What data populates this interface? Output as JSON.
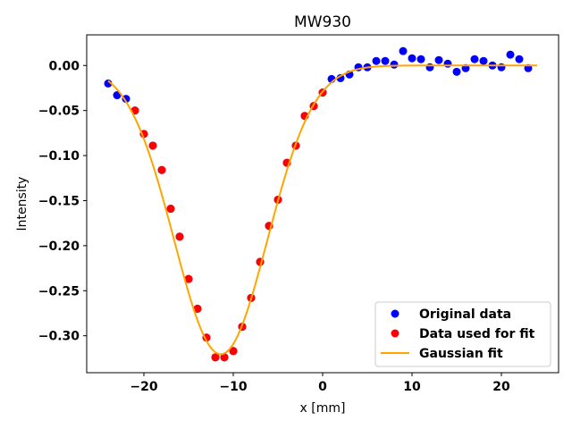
{
  "chart_data": {
    "type": "scatter",
    "title": "MW930",
    "xlabel": "x [mm]",
    "ylabel": "Intensity",
    "xlim": [
      -26.4,
      26.4
    ],
    "ylim": [
      -0.341,
      0.034
    ],
    "x_ticks": [
      -20,
      -10,
      0,
      10,
      20
    ],
    "x_tick_labels": [
      "−20",
      "−10",
      "0",
      "10",
      "20"
    ],
    "y_ticks": [
      0.0,
      -0.05,
      -0.1,
      -0.15,
      -0.2,
      -0.25,
      -0.3
    ],
    "y_tick_labels": [
      "0.00",
      "−0.05",
      "−0.10",
      "−0.15",
      "−0.20",
      "−0.25",
      "−0.30"
    ],
    "grid": false,
    "legend_position": "lower-right",
    "colors": {
      "original": "#0000ff",
      "fit_data": "#ff0000",
      "fit_line": "#ffa500"
    },
    "series": [
      {
        "name": "Original data",
        "kind": "scatter",
        "x": [
          -24,
          -23,
          -22,
          -21,
          -20,
          -19,
          -18,
          -17,
          -16,
          -15,
          -14,
          -13,
          -12,
          -11,
          -10,
          -9,
          -8,
          -7,
          -6,
          -5,
          -4,
          -3,
          -2,
          -1,
          0,
          1,
          2,
          3,
          4,
          5,
          6,
          7,
          8,
          9,
          10,
          11,
          12,
          13,
          14,
          15,
          16,
          17,
          18,
          19,
          20,
          21,
          22,
          23
        ],
        "y": [
          -0.02,
          -0.033,
          -0.037,
          -0.05,
          -0.076,
          -0.089,
          -0.116,
          -0.159,
          -0.19,
          -0.237,
          -0.27,
          -0.302,
          -0.324,
          -0.324,
          -0.317,
          -0.29,
          -0.258,
          -0.218,
          -0.178,
          -0.149,
          -0.108,
          -0.089,
          -0.056,
          -0.045,
          -0.03,
          -0.015,
          -0.014,
          -0.01,
          -0.002,
          -0.002,
          0.005,
          0.005,
          0.001,
          0.016,
          0.008,
          0.007,
          -0.002,
          0.006,
          0.002,
          -0.007,
          -0.003,
          0.007,
          0.005,
          0.0,
          -0.002,
          0.012,
          0.007,
          -0.003
        ]
      },
      {
        "name": "Data used for fit",
        "kind": "scatter",
        "x": [
          -21,
          -20,
          -19,
          -18,
          -17,
          -16,
          -15,
          -14,
          -13,
          -12,
          -11,
          -10,
          -9,
          -8,
          -7,
          -6,
          -5,
          -4,
          -3,
          -2,
          -1,
          0
        ],
        "y": [
          -0.05,
          -0.076,
          -0.089,
          -0.116,
          -0.159,
          -0.19,
          -0.237,
          -0.27,
          -0.302,
          -0.324,
          -0.324,
          -0.317,
          -0.29,
          -0.258,
          -0.218,
          -0.178,
          -0.149,
          -0.108,
          -0.089,
          -0.056,
          -0.045,
          -0.03
        ]
      },
      {
        "name": "Gaussian fit",
        "kind": "line",
        "amplitude": -0.3205,
        "center": -11.4,
        "sigma": 5.2,
        "x_range": [
          -24,
          24
        ]
      }
    ]
  }
}
